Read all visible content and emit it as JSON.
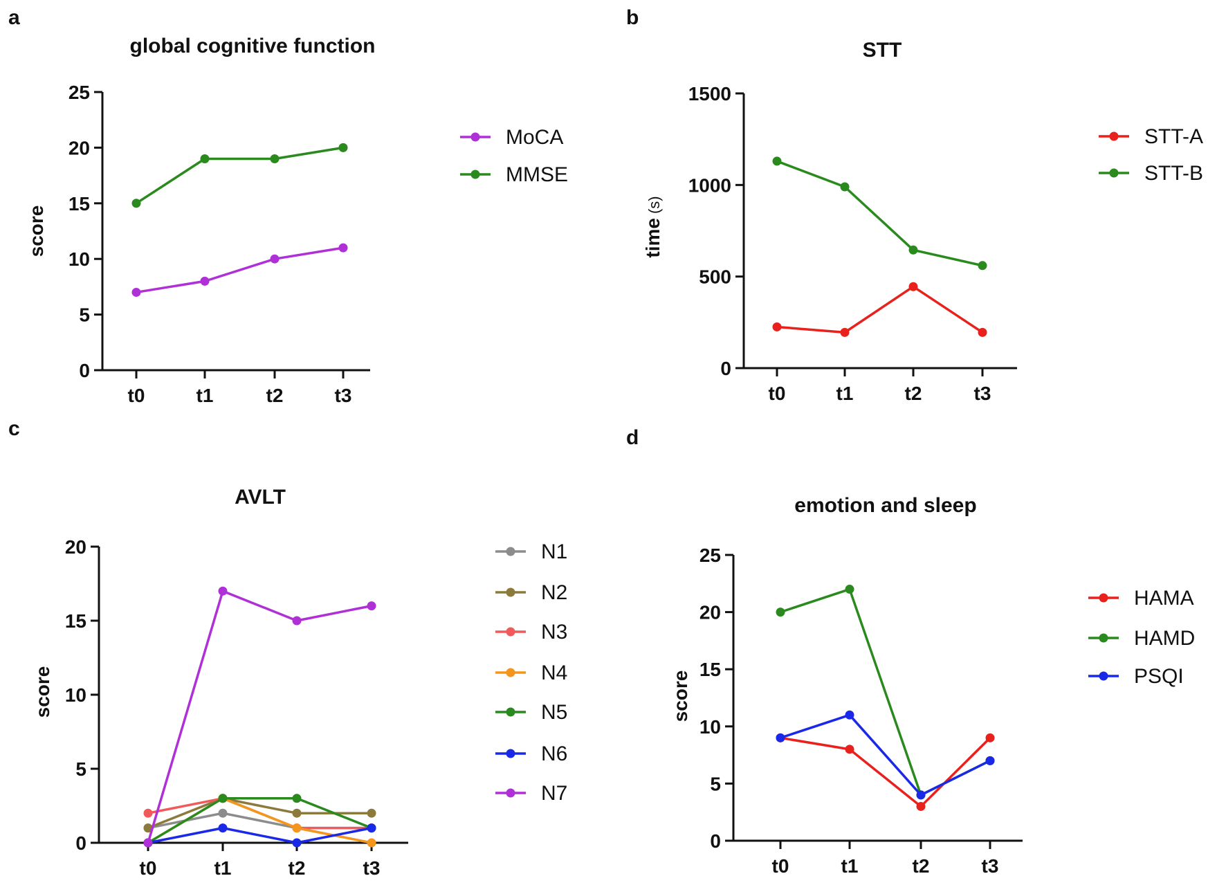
{
  "chart_data": [
    {
      "panel": "a",
      "type": "line",
      "title": "global cognitive function",
      "xlabel": "",
      "ylabel": "score",
      "categories": [
        "t0",
        "t1",
        "t2",
        "t3"
      ],
      "ylim": [
        0,
        25
      ],
      "yticks": [
        0,
        5,
        10,
        15,
        20,
        25
      ],
      "legend_position": "right",
      "series": [
        {
          "name": "MoCA",
          "color": "#b030d8",
          "values": [
            7,
            8,
            10,
            11
          ]
        },
        {
          "name": "MMSE",
          "color": "#2a8a1e",
          "values": [
            15,
            19,
            19,
            20
          ]
        }
      ]
    },
    {
      "panel": "b",
      "type": "line",
      "title": "STT",
      "xlabel": "",
      "ylabel": "time",
      "ylabel_unit": "(s)",
      "categories": [
        "t0",
        "t1",
        "t2",
        "t3"
      ],
      "ylim": [
        0,
        1500
      ],
      "yticks": [
        0,
        500,
        1000,
        1500
      ],
      "legend_position": "right",
      "series": [
        {
          "name": "STT-A",
          "color": "#e8211c",
          "values": [
            225,
            195,
            445,
            195
          ]
        },
        {
          "name": "STT-B",
          "color": "#2a8a1e",
          "values": [
            1130,
            990,
            645,
            560
          ]
        }
      ]
    },
    {
      "panel": "c",
      "type": "line",
      "title": "AVLT",
      "xlabel": "",
      "ylabel": "score",
      "categories": [
        "t0",
        "t1",
        "t2",
        "t3"
      ],
      "ylim": [
        0,
        20
      ],
      "yticks": [
        0,
        5,
        10,
        15,
        20
      ],
      "legend_position": "right",
      "series": [
        {
          "name": "N1",
          "color": "#8c8c8c",
          "values": [
            1,
            2,
            1,
            1
          ]
        },
        {
          "name": "N2",
          "color": "#8c7a3c",
          "values": [
            1,
            3,
            2,
            2
          ]
        },
        {
          "name": "N3",
          "color": "#f05a5a",
          "values": [
            2,
            3,
            1,
            1
          ]
        },
        {
          "name": "N4",
          "color": "#f4951e",
          "values": [
            0,
            3,
            1,
            0
          ]
        },
        {
          "name": "N5",
          "color": "#2a8a1e",
          "values": [
            0,
            3,
            3,
            1
          ]
        },
        {
          "name": "N6",
          "color": "#1a28e8",
          "values": [
            0,
            1,
            0,
            1
          ]
        },
        {
          "name": "N7",
          "color": "#b030d8",
          "values": [
            0,
            17,
            15,
            16
          ]
        }
      ]
    },
    {
      "panel": "d",
      "type": "line",
      "title": "emotion and sleep",
      "xlabel": "",
      "ylabel": "score",
      "categories": [
        "t0",
        "t1",
        "t2",
        "t3"
      ],
      "ylim": [
        0,
        25
      ],
      "yticks": [
        0,
        5,
        10,
        15,
        20,
        25
      ],
      "legend_position": "right",
      "series": [
        {
          "name": "HAMA",
          "color": "#e8211c",
          "values": [
            9,
            8,
            3,
            9
          ]
        },
        {
          "name": "HAMD",
          "color": "#2a8a1e",
          "values": [
            20,
            22,
            4,
            7
          ]
        },
        {
          "name": "PSQI",
          "color": "#1a28e8",
          "values": [
            9,
            11,
            4,
            7
          ]
        }
      ]
    }
  ]
}
